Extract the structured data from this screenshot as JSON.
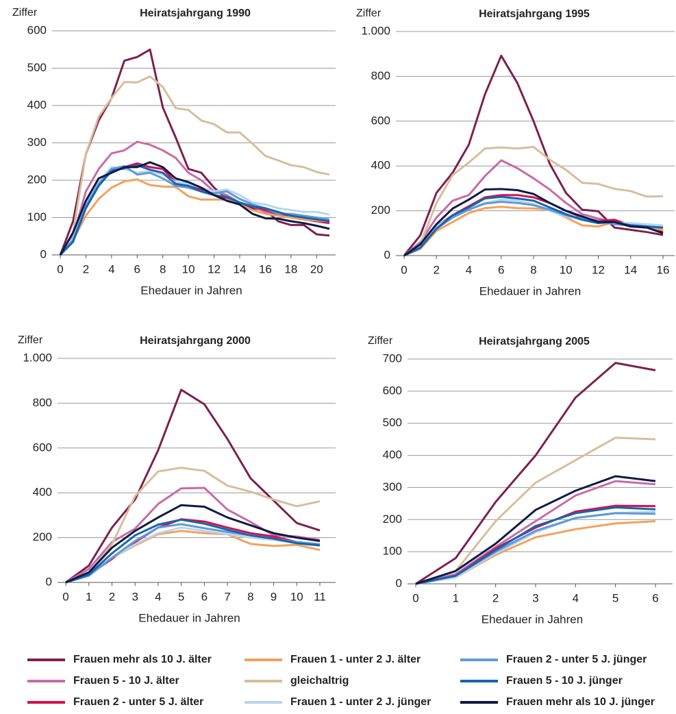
{
  "chart_data": [
    {
      "type": "line",
      "title": "Heiratsjahrgang 1990",
      "y_label": "Ziffer",
      "x_label": "Ehedauer in Jahren",
      "x": [
        0,
        1,
        2,
        3,
        4,
        5,
        6,
        7,
        8,
        9,
        10,
        11,
        12,
        13,
        14,
        15,
        16,
        17,
        18,
        19,
        20,
        21
      ],
      "xlim": [
        0,
        21
      ],
      "xticks": [
        0,
        2,
        4,
        6,
        8,
        10,
        12,
        14,
        16,
        18,
        20
      ],
      "ylim": [
        0,
        600
      ],
      "yticks": [
        0,
        100,
        200,
        300,
        400,
        500,
        600
      ],
      "grid": true,
      "series": [
        {
          "values": [
            0,
            90,
            270,
            360,
            420,
            520,
            530,
            550,
            395,
            315,
            230,
            220,
            180,
            150,
            135,
            125,
            120,
            90,
            80,
            80,
            55,
            52
          ]
        },
        {
          "values": [
            0,
            50,
            170,
            230,
            272,
            280,
            303,
            295,
            280,
            260,
            220,
            200,
            170,
            160,
            140,
            130,
            115,
            110,
            100,
            95,
            90,
            88
          ]
        },
        {
          "values": [
            0,
            40,
            140,
            195,
            225,
            235,
            245,
            235,
            230,
            195,
            190,
            175,
            160,
            150,
            140,
            130,
            120,
            110,
            100,
            95,
            90,
            85
          ]
        },
        {
          "values": [
            0,
            40,
            105,
            150,
            180,
            197,
            202,
            187,
            183,
            182,
            157,
            148,
            148,
            148,
            135,
            120,
            110,
            105,
            100,
            95,
            92,
            90
          ]
        },
        {
          "values": [
            0,
            60,
            270,
            370,
            420,
            463,
            462,
            478,
            450,
            393,
            388,
            360,
            350,
            328,
            328,
            298,
            265,
            253,
            240,
            235,
            222,
            215
          ]
        },
        {
          "values": [
            0,
            45,
            135,
            195,
            235,
            230,
            220,
            225,
            215,
            195,
            190,
            180,
            170,
            175,
            160,
            140,
            135,
            125,
            120,
            115,
            115,
            108
          ]
        },
        {
          "values": [
            0,
            40,
            130,
            190,
            230,
            238,
            215,
            220,
            205,
            185,
            180,
            170,
            165,
            170,
            150,
            135,
            125,
            110,
            110,
            105,
            100,
            95
          ]
        },
        {
          "values": [
            0,
            35,
            125,
            185,
            225,
            232,
            240,
            228,
            220,
            190,
            185,
            170,
            160,
            155,
            140,
            130,
            125,
            115,
            105,
            100,
            95,
            90
          ]
        },
        {
          "values": [
            0,
            60,
            145,
            205,
            220,
            235,
            235,
            248,
            235,
            205,
            195,
            180,
            160,
            145,
            135,
            110,
            98,
            97,
            90,
            85,
            78,
            70
          ]
        }
      ]
    },
    {
      "type": "line",
      "title": "Heiratsjahrgang 1995",
      "y_label": "Ziffer",
      "x_label": "Ehedauer in Jahren",
      "x": [
        0,
        1,
        2,
        3,
        4,
        5,
        6,
        7,
        8,
        9,
        10,
        11,
        12,
        13,
        14,
        15,
        16
      ],
      "xlim": [
        0,
        16
      ],
      "xticks": [
        0,
        2,
        4,
        6,
        8,
        10,
        12,
        14,
        16
      ],
      "ylim": [
        0,
        1000
      ],
      "yticks": [
        0,
        200,
        400,
        600,
        800,
        {
          "value": 1000,
          "label": "1.000"
        }
      ],
      "grid": true,
      "series": [
        {
          "values": [
            0,
            90,
            280,
            370,
            495,
            720,
            892,
            770,
            600,
            410,
            280,
            205,
            198,
            125,
            115,
            105,
            92
          ]
        },
        {
          "values": [
            0,
            60,
            170,
            245,
            270,
            355,
            425,
            390,
            345,
            295,
            235,
            185,
            165,
            150,
            140,
            130,
            120
          ]
        },
        {
          "values": [
            0,
            40,
            130,
            180,
            220,
            260,
            270,
            270,
            260,
            235,
            200,
            170,
            155,
            160,
            135,
            125,
            105
          ]
        },
        {
          "values": [
            0,
            30,
            110,
            150,
            190,
            212,
            218,
            212,
            210,
            205,
            170,
            135,
            130,
            150,
            130,
            125,
            115
          ]
        },
        {
          "values": [
            0,
            50,
            235,
            360,
            415,
            478,
            483,
            478,
            485,
            428,
            383,
            325,
            320,
            298,
            288,
            263,
            265
          ]
        },
        {
          "values": [
            0,
            40,
            130,
            175,
            210,
            235,
            250,
            245,
            230,
            200,
            175,
            160,
            150,
            145,
            145,
            140,
            135
          ]
        },
        {
          "values": [
            0,
            35,
            120,
            170,
            205,
            232,
            240,
            235,
            225,
            205,
            180,
            165,
            155,
            140,
            135,
            130,
            125
          ]
        },
        {
          "values": [
            0,
            35,
            120,
            180,
            215,
            255,
            262,
            255,
            245,
            215,
            185,
            160,
            145,
            150,
            135,
            130,
            125
          ]
        },
        {
          "values": [
            0,
            50,
            140,
            210,
            250,
            295,
            297,
            292,
            275,
            235,
            200,
            175,
            150,
            150,
            130,
            125,
            100
          ]
        }
      ]
    },
    {
      "type": "line",
      "title": "Heiratsjahrgang 2000",
      "y_label": "Ziffer",
      "x_label": "Ehedauer in Jahren",
      "x": [
        0,
        1,
        2,
        3,
        4,
        5,
        6,
        7,
        8,
        9,
        10,
        11
      ],
      "xlim": [
        0,
        11
      ],
      "xticks": [
        0,
        1,
        2,
        3,
        4,
        5,
        6,
        7,
        8,
        9,
        10,
        11
      ],
      "ylim": [
        0,
        1000
      ],
      "yticks": [
        0,
        200,
        400,
        600,
        800,
        {
          "value": 1000,
          "label": "1.000"
        }
      ],
      "grid": true,
      "series": [
        {
          "values": [
            0,
            75,
            245,
            370,
            590,
            860,
            795,
            640,
            465,
            365,
            265,
            232
          ]
        },
        {
          "values": [
            0,
            60,
            180,
            240,
            350,
            420,
            422,
            325,
            270,
            210,
            205,
            190
          ]
        },
        {
          "values": [
            0,
            35,
            105,
            180,
            245,
            282,
            272,
            245,
            220,
            205,
            180,
            170
          ]
        },
        {
          "values": [
            0,
            30,
            110,
            165,
            215,
            230,
            220,
            215,
            172,
            163,
            168,
            145
          ]
        },
        {
          "values": [
            0,
            40,
            170,
            385,
            495,
            512,
            498,
            432,
            405,
            370,
            340,
            362
          ]
        },
        {
          "values": [
            0,
            35,
            110,
            170,
            220,
            245,
            230,
            215,
            200,
            190,
            175,
            165
          ]
        },
        {
          "values": [
            0,
            30,
            110,
            185,
            245,
            260,
            242,
            225,
            210,
            195,
            180,
            170
          ]
        },
        {
          "values": [
            0,
            35,
            130,
            210,
            258,
            280,
            262,
            235,
            210,
            195,
            175,
            165
          ]
        },
        {
          "values": [
            0,
            45,
            155,
            230,
            290,
            345,
            338,
            290,
            255,
            220,
            200,
            185
          ]
        }
      ]
    },
    {
      "type": "line",
      "title": "Heiratsjahrgang 2005",
      "y_label": "Ziffer",
      "x_label": "Ehedauer in Jahren",
      "x": [
        0,
        1,
        2,
        3,
        4,
        5,
        6
      ],
      "xlim": [
        0,
        6
      ],
      "xticks": [
        0,
        1,
        2,
        3,
        4,
        5,
        6
      ],
      "ylim": [
        0,
        700
      ],
      "yticks": [
        0,
        100,
        200,
        300,
        400,
        500,
        600,
        700
      ],
      "grid": true,
      "series": [
        {
          "values": [
            0,
            80,
            255,
            400,
            580,
            688,
            665
          ]
        },
        {
          "values": [
            0,
            30,
            115,
            195,
            275,
            320,
            310
          ]
        },
        {
          "values": [
            0,
            25,
            110,
            175,
            225,
            243,
            242
          ]
        },
        {
          "values": [
            0,
            20,
            90,
            145,
            170,
            188,
            195
          ]
        },
        {
          "values": [
            0,
            40,
            195,
            315,
            385,
            455,
            450
          ]
        },
        {
          "values": [
            0,
            20,
            95,
            160,
            205,
            220,
            225
          ]
        },
        {
          "values": [
            0,
            25,
            100,
            165,
            205,
            220,
            218
          ]
        },
        {
          "values": [
            0,
            25,
            105,
            180,
            220,
            238,
            232
          ]
        },
        {
          "values": [
            0,
            40,
            125,
            230,
            290,
            335,
            320
          ]
        }
      ]
    }
  ],
  "legend": [
    {
      "name": "Frauen mehr als 10 J. älter",
      "color": "#7b2150"
    },
    {
      "name": "Frauen 5 - 10 J. älter",
      "color": "#c96aa7"
    },
    {
      "name": "Frauen 2 - unter 5 J. älter",
      "color": "#d6104a"
    },
    {
      "name": "Frauen 1 - unter 2 J. älter",
      "color": "#f5a05a"
    },
    {
      "name": "gleichaltrig",
      "color": "#d9bd9b"
    },
    {
      "name": "Frauen 1 - unter 2 J. jünger",
      "color": "#b9d5ef"
    },
    {
      "name": "Frauen 2 - unter 5 J. jünger",
      "color": "#5f9ad6"
    },
    {
      "name": "Frauen 5 - 10 J. jünger",
      "color": "#1565b0"
    },
    {
      "name": "Frauen mehr als 10 J. jünger",
      "color": "#0d1a45"
    }
  ]
}
